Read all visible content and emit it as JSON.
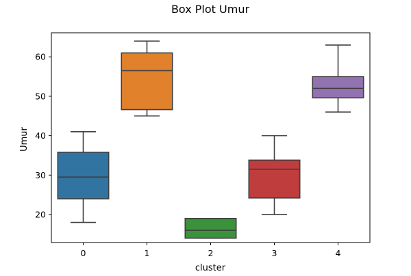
{
  "chart_data": {
    "type": "box",
    "title": "Box Plot Umur",
    "xlabel": "cluster",
    "ylabel": "Umur",
    "categories": [
      "0",
      "1",
      "2",
      "3",
      "4"
    ],
    "ylim": [
      12.9,
      66.1
    ],
    "yticks": [
      20,
      30,
      40,
      50,
      60
    ],
    "grid": false,
    "boxes": [
      {
        "category": "0",
        "whislo": 18,
        "q1": 24,
        "med": 29.5,
        "q3": 35.8,
        "whishi": 41,
        "color": "#3274a1"
      },
      {
        "category": "1",
        "whislo": 45,
        "q1": 46.6,
        "med": 56.5,
        "q3": 61,
        "whishi": 64,
        "color": "#e1812c"
      },
      {
        "category": "2",
        "whislo": 14,
        "q1": 14,
        "med": 16,
        "q3": 19,
        "whishi": 19,
        "color": "#3a923a"
      },
      {
        "category": "3",
        "whislo": 20,
        "q1": 24.2,
        "med": 31.5,
        "q3": 33.8,
        "whishi": 40,
        "color": "#c03d3e"
      },
      {
        "category": "4",
        "whislo": 46,
        "q1": 49.6,
        "med": 52,
        "q3": 55,
        "whishi": 63,
        "color": "#9372b2"
      }
    ]
  }
}
